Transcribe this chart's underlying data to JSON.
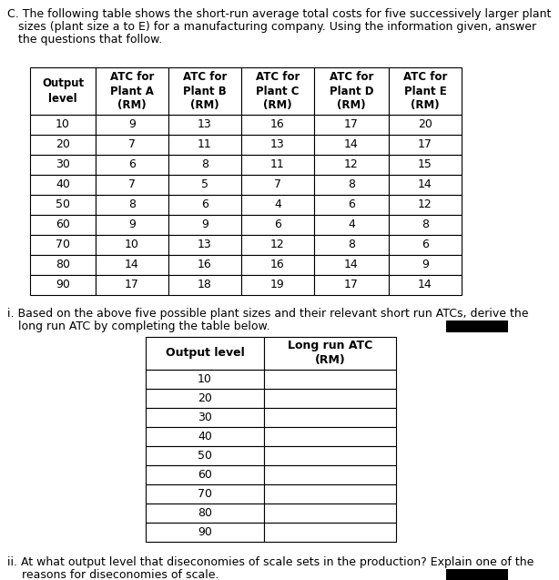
{
  "title_line1": "C. The following table shows the short-run average total costs for five successively larger plant",
  "title_line2": "   sizes (plant size a to E) for a manufacturing company. Using the information given, answer",
  "title_line3": "   the questions that follow.",
  "main_headers": [
    "Output\nlevel",
    "ATC for\nPlant A\n(RM)",
    "ATC for\nPlant B\n(RM)",
    "ATC for\nPlant C\n(RM)",
    "ATC for\nPlant D\n(RM)",
    "ATC for\nPlant E\n(RM)"
  ],
  "main_rows": [
    [
      "10",
      "9",
      "13",
      "16",
      "17",
      "20"
    ],
    [
      "20",
      "7",
      "11",
      "13",
      "14",
      "17"
    ],
    [
      "30",
      "6",
      "8",
      "11",
      "12",
      "15"
    ],
    [
      "40",
      "7",
      "5",
      "7",
      "8",
      "14"
    ],
    [
      "50",
      "8",
      "6",
      "4",
      "6",
      "12"
    ],
    [
      "60",
      "9",
      "9",
      "6",
      "4",
      "8"
    ],
    [
      "70",
      "10",
      "13",
      "12",
      "8",
      "6"
    ],
    [
      "80",
      "14",
      "16",
      "16",
      "14",
      "9"
    ],
    [
      "90",
      "17",
      "18",
      "19",
      "17",
      "14"
    ]
  ],
  "q1_line1": "i. Based on the above five possible plant sizes and their relevant short run ATCs, derive the",
  "q1_line2": "   long run ATC by completing the table below.",
  "lratc_headers": [
    "Output level",
    "Long run ATC\n(RM)"
  ],
  "lratc_rows": [
    "10",
    "20",
    "30",
    "40",
    "50",
    "60",
    "70",
    "80",
    "90"
  ],
  "q2_line1": "ii. At what output level that diseconomies of scale sets in the production? Explain one of the",
  "q2_line2": "    reasons for diseconomies of scale.",
  "bg_color": "#ffffff",
  "text_color": "#000000",
  "font_size": 9.0,
  "table_font_size": 9.0
}
